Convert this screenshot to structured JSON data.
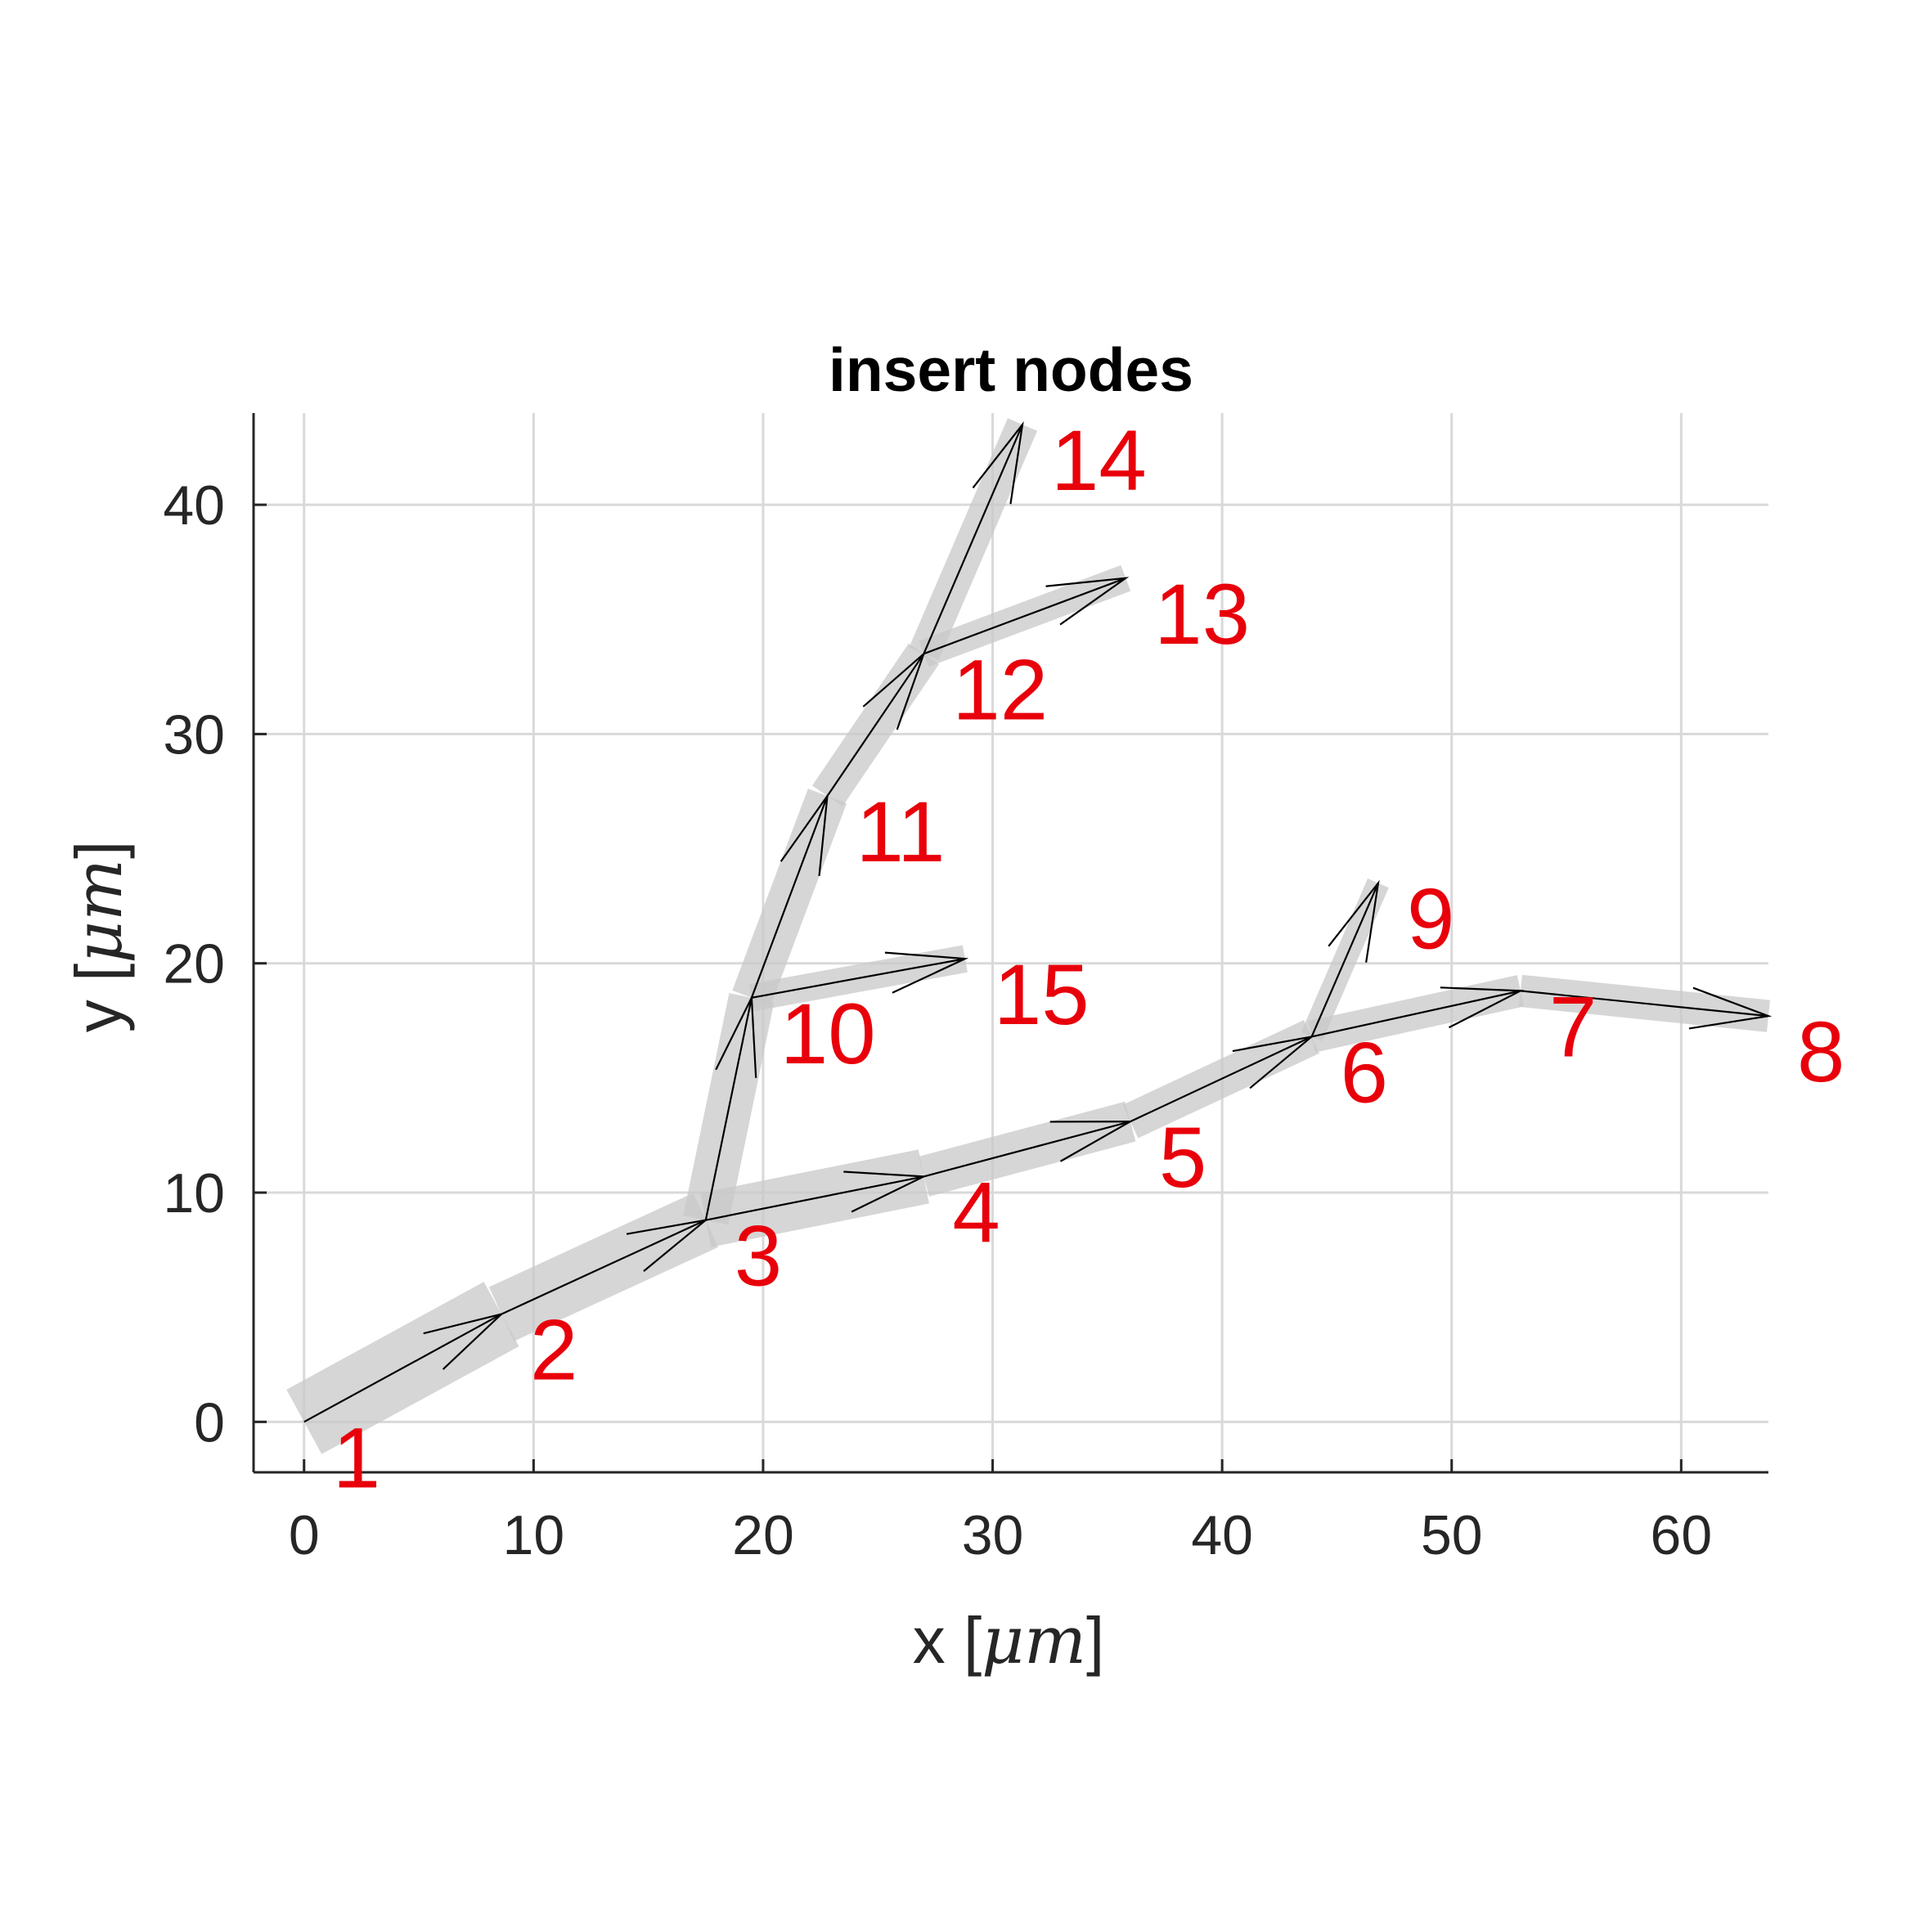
{
  "chart_data": {
    "type": "line",
    "title": "insert nodes",
    "xlabel_prefix": "x [",
    "xlabel_unit": "μm",
    "xlabel_suffix": "]",
    "ylabel_prefix": "y [",
    "ylabel_unit": "μm",
    "ylabel_suffix": "]",
    "xlim": [
      -2.2,
      63.8
    ],
    "ylim": [
      -2.2,
      44
    ],
    "xticks": [
      0,
      10,
      20,
      30,
      40,
      50,
      60
    ],
    "yticks": [
      0,
      10,
      20,
      30,
      40
    ],
    "grid": true,
    "colors": {
      "node_label": "#e8000b",
      "tube": "#c8c8c8",
      "arrow": "#000000",
      "grid": "#d9d9d9"
    },
    "nodes": [
      {
        "id": "1",
        "x": 0.0,
        "y": 0.0
      },
      {
        "id": "2",
        "x": 8.6,
        "y": 4.7
      },
      {
        "id": "3",
        "x": 17.5,
        "y": 8.8
      },
      {
        "id": "4",
        "x": 27.0,
        "y": 10.7
      },
      {
        "id": "5",
        "x": 36.0,
        "y": 13.1
      },
      {
        "id": "6",
        "x": 43.9,
        "y": 16.8
      },
      {
        "id": "7",
        "x": 53.0,
        "y": 18.8
      },
      {
        "id": "8",
        "x": 63.8,
        "y": 17.7
      },
      {
        "id": "9",
        "x": 46.8,
        "y": 23.5
      },
      {
        "id": "10",
        "x": 19.5,
        "y": 18.5
      },
      {
        "id": "11",
        "x": 22.8,
        "y": 27.3
      },
      {
        "id": "12",
        "x": 27.0,
        "y": 33.5
      },
      {
        "id": "13",
        "x": 35.8,
        "y": 36.8
      },
      {
        "id": "14",
        "x": 31.3,
        "y": 43.5
      },
      {
        "id": "15",
        "x": 28.8,
        "y": 20.2
      }
    ],
    "edges": [
      {
        "from": "1",
        "to": "2",
        "radius": 1.6
      },
      {
        "from": "2",
        "to": "3",
        "radius": 1.3
      },
      {
        "from": "3",
        "to": "4",
        "radius": 1.2
      },
      {
        "from": "4",
        "to": "5",
        "radius": 0.9
      },
      {
        "from": "5",
        "to": "6",
        "radius": 0.8
      },
      {
        "from": "6",
        "to": "7",
        "radius": 0.7
      },
      {
        "from": "7",
        "to": "8",
        "radius": 0.7
      },
      {
        "from": "6",
        "to": "9",
        "radius": 0.5
      },
      {
        "from": "3",
        "to": "10",
        "radius": 1.0
      },
      {
        "from": "10",
        "to": "11",
        "radius": 0.9
      },
      {
        "from": "11",
        "to": "12",
        "radius": 0.8
      },
      {
        "from": "12",
        "to": "13",
        "radius": 0.6
      },
      {
        "from": "12",
        "to": "14",
        "radius": 0.7
      },
      {
        "from": "10",
        "to": "15",
        "radius": 0.6
      }
    ]
  }
}
